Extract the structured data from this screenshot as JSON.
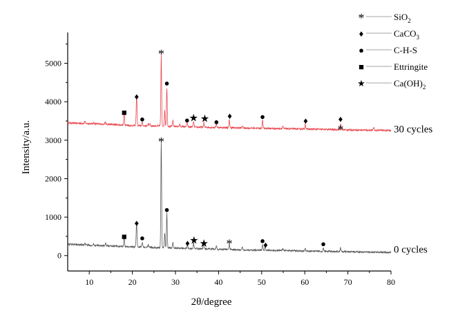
{
  "chart_data": {
    "type": "line",
    "xlabel": "2θ/degree",
    "ylabel": "Intensity/a.u.",
    "xlim": [
      5,
      80
    ],
    "ylim": [
      -400,
      5800
    ],
    "x_ticks": [
      10,
      20,
      30,
      40,
      50,
      60,
      70,
      80
    ],
    "y_ticks": [
      0,
      1000,
      2000,
      3000,
      4000,
      5000
    ],
    "grid": false,
    "legend_position": "top-right",
    "series": [
      {
        "name": "30 cycles",
        "color": "#e8474f",
        "label_y": 3200,
        "baseline": [
          [
            5,
            3450
          ],
          [
            10,
            3430
          ],
          [
            15,
            3410
          ],
          [
            20,
            3380
          ],
          [
            25,
            3370
          ],
          [
            30,
            3360
          ],
          [
            35,
            3340
          ],
          [
            40,
            3330
          ],
          [
            45,
            3320
          ],
          [
            50,
            3310
          ],
          [
            55,
            3300
          ],
          [
            60,
            3290
          ],
          [
            65,
            3280
          ],
          [
            70,
            3270
          ],
          [
            75,
            3260
          ],
          [
            80,
            3255
          ]
        ],
        "peaks": [
          [
            9.0,
            60
          ],
          [
            11.0,
            40
          ],
          [
            13.7,
            60
          ],
          [
            18.1,
            300
          ],
          [
            20.9,
            130
          ],
          [
            21.0,
            720
          ],
          [
            22.3,
            100
          ],
          [
            23.7,
            70
          ],
          [
            24.1,
            60
          ],
          [
            26.7,
            1850
          ],
          [
            27.5,
            400
          ],
          [
            28.0,
            1000
          ],
          [
            29.4,
            150
          ],
          [
            31.0,
            50
          ],
          [
            32.7,
            110
          ],
          [
            34.2,
            150
          ],
          [
            36.6,
            120
          ],
          [
            39.5,
            100
          ],
          [
            42.5,
            210
          ],
          [
            45.6,
            60
          ],
          [
            50.2,
            210
          ],
          [
            54.9,
            70
          ],
          [
            60.1,
            140
          ],
          [
            68.3,
            160
          ],
          [
            76.0,
            80
          ]
        ]
      },
      {
        "name": "0 cycles",
        "color": "#5a5a5a",
        "label_y": 80,
        "baseline": [
          [
            5,
            300
          ],
          [
            10,
            270
          ],
          [
            15,
            250
          ],
          [
            20,
            230
          ],
          [
            25,
            210
          ],
          [
            30,
            195
          ],
          [
            35,
            180
          ],
          [
            40,
            165
          ],
          [
            45,
            150
          ],
          [
            50,
            140
          ],
          [
            55,
            130
          ],
          [
            60,
            120
          ],
          [
            65,
            110
          ],
          [
            70,
            100
          ],
          [
            75,
            90
          ],
          [
            80,
            85
          ]
        ],
        "peaks": [
          [
            9.0,
            50
          ],
          [
            11.0,
            40
          ],
          [
            13.8,
            60
          ],
          [
            18.1,
            230
          ],
          [
            20.9,
            160
          ],
          [
            21.0,
            520
          ],
          [
            22.3,
            120
          ],
          [
            23.7,
            70
          ],
          [
            26.7,
            2800
          ],
          [
            27.5,
            400
          ],
          [
            28.0,
            900
          ],
          [
            29.4,
            150
          ],
          [
            32.8,
            100
          ],
          [
            34.2,
            150
          ],
          [
            36.5,
            120
          ],
          [
            39.5,
            90
          ],
          [
            42.5,
            150
          ],
          [
            45.5,
            60
          ],
          [
            50.2,
            150
          ],
          [
            50.8,
            90
          ],
          [
            54.9,
            60
          ],
          [
            60.1,
            70
          ],
          [
            64.3,
            90
          ],
          [
            68.3,
            100
          ]
        ]
      }
    ],
    "markers": [
      {
        "symbol": "*",
        "x": 26.7,
        "y": 5350
      },
      {
        "symbol": "♦",
        "x": 21.0,
        "y": 4150
      },
      {
        "symbol": "●",
        "x": 28.0,
        "y": 4500
      },
      {
        "symbol": "■",
        "x": 18.1,
        "y": 3730
      },
      {
        "symbol": "●",
        "x": 22.3,
        "y": 3560
      },
      {
        "symbol": "●",
        "x": 32.7,
        "y": 3540
      },
      {
        "symbol": "★",
        "x": 34.2,
        "y": 3580
      },
      {
        "symbol": "★",
        "x": 36.8,
        "y": 3560
      },
      {
        "symbol": "●",
        "x": 39.5,
        "y": 3490
      },
      {
        "symbol": "♦",
        "x": 42.6,
        "y": 3640
      },
      {
        "symbol": "●",
        "x": 50.2,
        "y": 3630
      },
      {
        "symbol": "♦",
        "x": 60.2,
        "y": 3520
      },
      {
        "symbol": "♦",
        "x": 68.3,
        "y": 3560
      },
      {
        "symbol": "*",
        "x": 68.3,
        "y": 3380
      },
      {
        "symbol": "*",
        "x": 26.7,
        "y": 3070
      },
      {
        "symbol": "●",
        "x": 28.0,
        "y": 1210
      },
      {
        "symbol": "♦",
        "x": 21.0,
        "y": 860
      },
      {
        "symbol": "■",
        "x": 18.1,
        "y": 510
      },
      {
        "symbol": "●",
        "x": 22.3,
        "y": 470
      },
      {
        "symbol": "♦",
        "x": 32.8,
        "y": 340
      },
      {
        "symbol": "★",
        "x": 34.3,
        "y": 400
      },
      {
        "symbol": "★",
        "x": 36.6,
        "y": 320
      },
      {
        "symbol": "*",
        "x": 42.5,
        "y": 420
      },
      {
        "symbol": "●",
        "x": 50.2,
        "y": 400
      },
      {
        "symbol": "♦",
        "x": 50.9,
        "y": 290
      },
      {
        "symbol": "●",
        "x": 64.3,
        "y": 320
      }
    ],
    "legend": [
      {
        "symbol": "*",
        "label": "SiO",
        "sub": "2"
      },
      {
        "symbol": "♦",
        "label": "CaCO",
        "sub": "3"
      },
      {
        "symbol": "●",
        "label": "C-H-S",
        "sub": ""
      },
      {
        "symbol": "■",
        "label": "Ettringite",
        "sub": ""
      },
      {
        "symbol": "★",
        "label": "Ca(OH)",
        "sub": "2"
      }
    ]
  }
}
